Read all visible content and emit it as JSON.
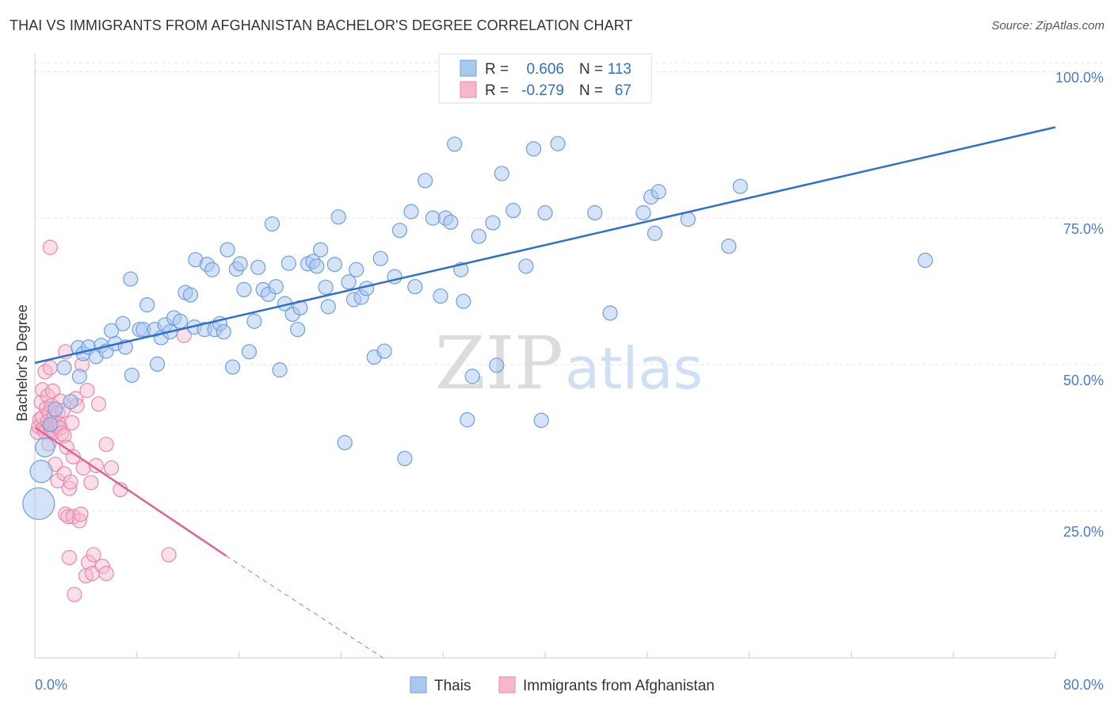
{
  "header": {
    "title": "THAI VS IMMIGRANTS FROM AFGHANISTAN BACHELOR'S DEGREE CORRELATION CHART",
    "source": "Source: ZipAtlas.com"
  },
  "watermark": {
    "zip": "ZIP",
    "atlas": "atlas"
  },
  "colors": {
    "blue_fill": "#a9c8f0",
    "blue_stroke": "#6f9fdc",
    "blue_line": "#2f6fce",
    "pink_fill": "#f6b6cb",
    "pink_stroke": "#e88aa9",
    "pink_line": "#e0648f",
    "grid": "#e4e4e4",
    "tick_text": "#4a7cc9"
  },
  "legend": {
    "rows": [
      {
        "r_label": "R =",
        "r_value": "0.606",
        "n_label": "N =",
        "n_value": "113"
      },
      {
        "r_label": "R =",
        "r_value": "-0.279",
        "n_label": "N =",
        "n_value": "67"
      }
    ]
  },
  "bottom_legend": [
    "Thais",
    "Immigrants from Afghanistan"
  ],
  "chart_data": {
    "type": "scatter",
    "title": "THAI VS IMMIGRANTS FROM AFGHANISTAN BACHELOR'S DEGREE CORRELATION CHART",
    "xlabel": "",
    "ylabel": "Bachelor's Degree",
    "xlim": [
      0,
      80
    ],
    "ylim": [
      0,
      103
    ],
    "x_tick_labels": [
      "0.0%",
      "80.0%"
    ],
    "y_tick_labels": [
      "100.0%",
      "75.0%",
      "50.0%",
      "25.0%"
    ],
    "y_tick_values": [
      100,
      75,
      50,
      25
    ],
    "grid": true,
    "series": [
      {
        "name": "Thais",
        "r": 0.606,
        "n": 113,
        "trend": {
          "x": [
            0,
            80
          ],
          "y": [
            50.3,
            90.5
          ],
          "dashed_from_x": null
        },
        "points": [
          [
            0.3,
            26.3,
            7
          ],
          [
            0.5,
            31.8,
            4
          ],
          [
            0.8,
            35.9,
            3
          ],
          [
            1.6,
            42.4,
            2
          ],
          [
            2.8,
            43.7,
            2
          ],
          [
            1.2,
            39.8,
            2
          ],
          [
            2.3,
            49.5,
            2
          ],
          [
            3.5,
            48.0,
            2
          ],
          [
            3.4,
            52.9,
            2
          ],
          [
            3.8,
            51.9,
            2
          ],
          [
            4.2,
            53.0,
            2
          ],
          [
            4.8,
            51.4,
            2
          ],
          [
            5.2,
            53.3,
            2
          ],
          [
            5.6,
            52.3,
            2
          ],
          [
            6.3,
            53.6,
            2
          ],
          [
            6.0,
            55.8,
            2
          ],
          [
            6.9,
            57.0,
            2
          ],
          [
            7.1,
            53.0,
            2
          ],
          [
            7.6,
            48.2,
            2
          ],
          [
            7.5,
            64.6,
            2
          ],
          [
            8.2,
            56.0,
            2
          ],
          [
            8.5,
            56.0,
            2
          ],
          [
            8.8,
            60.2,
            2
          ],
          [
            9.4,
            56.0,
            2
          ],
          [
            9.6,
            50.1,
            2
          ],
          [
            9.9,
            54.6,
            2
          ],
          [
            10.2,
            56.8,
            2
          ],
          [
            10.6,
            55.6,
            2
          ],
          [
            10.9,
            58.0,
            2
          ],
          [
            11.4,
            57.4,
            2
          ],
          [
            11.8,
            62.3,
            2
          ],
          [
            12.2,
            61.9,
            2
          ],
          [
            12.5,
            56.4,
            2
          ],
          [
            12.6,
            67.9,
            2
          ],
          [
            13.3,
            56.0,
            2
          ],
          [
            13.5,
            67.1,
            2
          ],
          [
            13.9,
            66.2,
            2
          ],
          [
            14.1,
            56.0,
            2
          ],
          [
            14.5,
            57.0,
            2
          ],
          [
            14.8,
            55.6,
            2
          ],
          [
            15.1,
            69.6,
            2
          ],
          [
            15.5,
            49.6,
            2
          ],
          [
            15.8,
            66.3,
            2
          ],
          [
            16.1,
            67.2,
            2
          ],
          [
            16.4,
            62.8,
            2
          ],
          [
            16.8,
            52.2,
            2
          ],
          [
            17.2,
            57.4,
            2
          ],
          [
            17.5,
            66.6,
            2
          ],
          [
            17.9,
            62.8,
            2
          ],
          [
            18.3,
            62.0,
            2
          ],
          [
            18.6,
            74.0,
            2
          ],
          [
            18.9,
            63.3,
            2
          ],
          [
            19.2,
            49.1,
            2
          ],
          [
            19.6,
            60.4,
            2
          ],
          [
            19.9,
            67.3,
            2
          ],
          [
            20.2,
            58.6,
            2
          ],
          [
            20.6,
            56.0,
            2
          ],
          [
            20.8,
            59.7,
            2
          ],
          [
            21.4,
            67.2,
            2
          ],
          [
            21.8,
            67.6,
            2
          ],
          [
            22.1,
            66.8,
            2
          ],
          [
            22.4,
            69.6,
            2
          ],
          [
            22.8,
            63.2,
            2
          ],
          [
            23.0,
            59.9,
            2
          ],
          [
            23.5,
            67.1,
            2
          ],
          [
            23.8,
            75.2,
            2
          ],
          [
            24.3,
            36.7,
            2
          ],
          [
            24.6,
            64.1,
            2
          ],
          [
            25.0,
            61.1,
            2
          ],
          [
            25.2,
            66.2,
            2
          ],
          [
            25.6,
            61.5,
            2
          ],
          [
            26.0,
            63.0,
            2
          ],
          [
            26.6,
            51.3,
            2
          ],
          [
            27.1,
            68.1,
            2
          ],
          [
            27.4,
            52.3,
            2
          ],
          [
            28.2,
            65.0,
            2
          ],
          [
            28.6,
            72.9,
            2
          ],
          [
            29.0,
            34.0,
            2
          ],
          [
            29.5,
            76.1,
            2
          ],
          [
            29.8,
            63.3,
            2
          ],
          [
            30.6,
            81.4,
            2
          ],
          [
            31.2,
            75.0,
            2
          ],
          [
            31.8,
            61.7,
            2
          ],
          [
            32.2,
            75.0,
            2
          ],
          [
            32.6,
            74.3,
            2
          ],
          [
            32.9,
            87.6,
            2
          ],
          [
            33.4,
            66.2,
            2
          ],
          [
            33.6,
            60.8,
            2
          ],
          [
            33.9,
            40.6,
            2
          ],
          [
            34.3,
            48.0,
            2
          ],
          [
            34.8,
            71.9,
            2
          ],
          [
            35.9,
            74.2,
            2
          ],
          [
            36.2,
            49.9,
            2
          ],
          [
            36.6,
            82.6,
            2
          ],
          [
            37.5,
            76.3,
            2
          ],
          [
            38.5,
            66.8,
            2
          ],
          [
            39.1,
            86.8,
            2
          ],
          [
            39.7,
            40.5,
            2
          ],
          [
            40.0,
            75.9,
            2
          ],
          [
            41.0,
            87.7,
            2
          ],
          [
            43.9,
            75.9,
            2
          ],
          [
            45.1,
            58.8,
            2
          ],
          [
            47.7,
            75.9,
            2
          ],
          [
            48.3,
            78.6,
            2
          ],
          [
            48.6,
            72.4,
            2
          ],
          [
            48.9,
            79.5,
            2
          ],
          [
            51.2,
            74.8,
            2
          ],
          [
            54.4,
            70.2,
            2
          ],
          [
            55.3,
            80.4,
            2
          ],
          [
            69.8,
            67.8,
            2
          ]
        ]
      },
      {
        "name": "Immigrants from Afghanistan",
        "r": -0.279,
        "n": 67,
        "trend": {
          "x": [
            0,
            15.0,
            27.3
          ],
          "y": [
            39.3,
            17.4,
            0.0
          ],
          "dashed_from_x": 15.0
        },
        "points": [
          [
            0.2,
            38.5,
            2
          ],
          [
            0.3,
            39.5,
            2
          ],
          [
            0.4,
            40.7,
            2
          ],
          [
            0.5,
            43.6,
            2
          ],
          [
            0.6,
            45.7,
            2
          ],
          [
            0.6,
            41.0,
            2
          ],
          [
            0.7,
            39.1,
            2
          ],
          [
            0.8,
            38.5,
            2
          ],
          [
            0.8,
            48.8,
            2
          ],
          [
            0.9,
            42.6,
            2
          ],
          [
            1.0,
            40.3,
            2
          ],
          [
            1.0,
            44.7,
            2
          ],
          [
            1.1,
            36.5,
            2
          ],
          [
            1.1,
            41.8,
            2
          ],
          [
            1.2,
            39.5,
            2
          ],
          [
            1.2,
            49.5,
            2
          ],
          [
            1.3,
            38.9,
            2
          ],
          [
            1.3,
            43.0,
            2
          ],
          [
            1.4,
            39.8,
            2
          ],
          [
            1.4,
            45.5,
            2
          ],
          [
            1.5,
            41.2,
            2
          ],
          [
            1.5,
            38.5,
            2
          ],
          [
            1.6,
            40.1,
            2
          ],
          [
            1.6,
            33.0,
            2
          ],
          [
            1.7,
            39.5,
            2
          ],
          [
            1.8,
            41.8,
            2
          ],
          [
            1.8,
            30.2,
            2
          ],
          [
            1.9,
            39.9,
            2
          ],
          [
            2.0,
            39.2,
            2
          ],
          [
            2.0,
            43.8,
            2
          ],
          [
            2.1,
            38.3,
            2
          ],
          [
            2.2,
            42.2,
            2
          ],
          [
            2.3,
            37.9,
            2
          ],
          [
            2.3,
            31.4,
            2
          ],
          [
            2.4,
            24.5,
            2
          ],
          [
            2.5,
            35.9,
            2
          ],
          [
            2.6,
            24.1,
            2
          ],
          [
            2.7,
            28.9,
            2
          ],
          [
            2.7,
            17.1,
            2
          ],
          [
            2.8,
            30.0,
            2
          ],
          [
            2.9,
            40.1,
            2
          ],
          [
            3.0,
            34.3,
            2
          ],
          [
            3.0,
            24.1,
            2
          ],
          [
            3.1,
            10.8,
            2
          ],
          [
            3.2,
            44.2,
            2
          ],
          [
            3.3,
            43.0,
            2
          ],
          [
            3.5,
            23.4,
            2
          ],
          [
            3.6,
            24.5,
            2
          ],
          [
            3.7,
            50.0,
            2
          ],
          [
            3.8,
            32.4,
            2
          ],
          [
            4.0,
            14.0,
            2
          ],
          [
            4.2,
            16.3,
            2
          ],
          [
            4.4,
            29.9,
            2
          ],
          [
            4.5,
            14.4,
            2
          ],
          [
            4.6,
            17.6,
            2
          ],
          [
            4.8,
            32.8,
            2
          ],
          [
            5.0,
            43.3,
            2
          ],
          [
            5.3,
            15.6,
            2
          ],
          [
            5.6,
            36.4,
            2
          ],
          [
            6.0,
            32.4,
            2
          ],
          [
            6.7,
            28.7,
            2
          ],
          [
            1.2,
            70.0,
            2
          ],
          [
            2.4,
            52.2,
            2
          ],
          [
            10.5,
            17.6,
            2
          ],
          [
            11.7,
            55.0,
            2
          ],
          [
            4.1,
            45.6,
            2
          ],
          [
            5.6,
            14.4,
            2
          ]
        ]
      }
    ]
  }
}
